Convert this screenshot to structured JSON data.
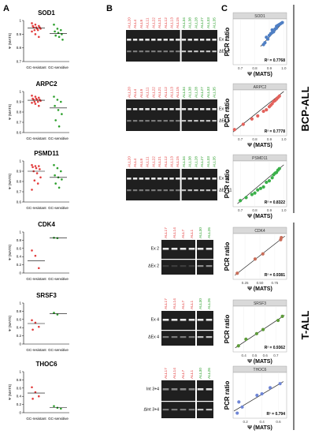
{
  "panels": {
    "a": "A",
    "b": "B",
    "c": "C"
  },
  "groups": {
    "bcp": "BCP-ALL",
    "tall": "T-ALL"
  },
  "colors": {
    "resistant": "#e23c3c",
    "sensitive": "#2ca02c",
    "sod1": "#4f7fc4",
    "arpc2": "#e3625c",
    "psmd11": "#3bb04a",
    "cdk4": "#c96e5a",
    "srsf3": "#5e9c3a",
    "thoc6": "#6f86d6"
  },
  "panel_a": {
    "ylabel": "Ψ (MATS)",
    "xlabels": [
      "GC-resistant",
      "GC-sensitive"
    ],
    "genes": [
      {
        "name": "SOD1",
        "yticks": [
          "0.7",
          "0.8",
          "0.9",
          "1"
        ],
        "yrange": [
          0.7,
          1.0
        ],
        "resistant": [
          0.98,
          0.97,
          0.96,
          0.96,
          0.95,
          0.95,
          0.95,
          0.94,
          0.94,
          0.93,
          0.93,
          0.92,
          0.9,
          0.88
        ],
        "sensitive": [
          0.97,
          0.94,
          0.93,
          0.92,
          0.91,
          0.9,
          0.89,
          0.88,
          0.86
        ],
        "res_mean": 0.945,
        "sens_mean": 0.905
      },
      {
        "name": "ARPC2",
        "yticks": [
          "0.6",
          "0.7",
          "0.8",
          "0.9",
          "1"
        ],
        "yrange": [
          0.6,
          1.0
        ],
        "resistant": [
          0.96,
          0.95,
          0.94,
          0.93,
          0.93,
          0.92,
          0.92,
          0.92,
          0.91,
          0.9,
          0.9,
          0.89,
          0.88,
          0.86
        ],
        "sensitive": [
          0.95,
          0.92,
          0.9,
          0.86,
          0.82,
          0.78,
          0.72,
          0.66
        ],
        "res_mean": 0.915,
        "sens_mean": 0.84
      },
      {
        "name": "PSMD11",
        "yticks": [
          "0.6",
          "0.7",
          "0.8",
          "0.9",
          "1"
        ],
        "yrange": [
          0.6,
          1.0
        ],
        "resistant": [
          0.96,
          0.95,
          0.95,
          0.94,
          0.93,
          0.92,
          0.9,
          0.88,
          0.84,
          0.81,
          0.78,
          0.72
        ],
        "sensitive": [
          0.96,
          0.93,
          0.9,
          0.86,
          0.84,
          0.82,
          0.78,
          0.74
        ],
        "res_mean": 0.9,
        "sens_mean": 0.84
      },
      {
        "name": "CDK4",
        "yticks": [
          "0",
          "0.2",
          "0.4",
          "0.6",
          "0.8",
          "1"
        ],
        "yrange": [
          0.0,
          1.0
        ],
        "resistant": [
          0.55,
          0.42,
          0.12
        ],
        "sensitive": [
          0.86,
          0.85
        ],
        "res_mean": 0.3,
        "sens_mean": 0.86
      },
      {
        "name": "SRSF3",
        "yticks": [
          "0",
          "0.2",
          "0.4",
          "0.6",
          "0.8",
          "1"
        ],
        "yrange": [
          0.0,
          1.0
        ],
        "resistant": [
          0.58,
          0.52,
          0.42,
          0.35
        ],
        "sensitive": [
          0.76,
          0.72
        ],
        "res_mean": 0.5,
        "sens_mean": 0.74
      },
      {
        "name": "THOC6",
        "yticks": [
          "0",
          "0.2",
          "0.4",
          "0.6",
          "0.8",
          "1"
        ],
        "yrange": [
          0.0,
          1.0
        ],
        "resistant": [
          0.62,
          0.5,
          0.4,
          0.34
        ],
        "sensitive": [
          0.16,
          0.12,
          0.1
        ],
        "res_mean": 0.48,
        "sens_mean": 0.12
      }
    ]
  },
  "panel_b": {
    "rows": [
      {
        "red": [
          "ALL20",
          "ALL4",
          "ALL9",
          "ALL11",
          "ALL22",
          "ALL21",
          "ALL12",
          "ALL13",
          "ALL15"
        ],
        "green": [
          "ALL34",
          "ALL38",
          "ALL28",
          "ALL27",
          "ALL33",
          "ALL35"
        ],
        "bands": [
          "Ex 2",
          "ΔEx 2"
        ]
      },
      {
        "red": [
          "ALL20",
          "ALL4",
          "ALL9",
          "ALL11",
          "ALL22",
          "ALL21",
          "ALL12",
          "ALL13",
          "ALL15"
        ],
        "green": [
          "ALL34",
          "ALL38",
          "ALL28",
          "ALL27",
          "ALL33",
          "ALL35"
        ],
        "bands": [
          "Ex 5",
          "ΔEx 5"
        ]
      },
      {
        "red": [
          "ALL20",
          "ALL4",
          "ALL9",
          "ALL11",
          "ALL22",
          "ALL21",
          "ALL12",
          "ALL13",
          "ALL15"
        ],
        "green": [
          "ALL34",
          "ALL38",
          "ALL28",
          "ALL27",
          "ALL33",
          "ALL35"
        ],
        "bands": [
          "Ex 11",
          "ΔEx 11"
        ]
      },
      {
        "red": [
          "ALL17",
          "ALL14",
          "ALL7",
          "ALL1"
        ],
        "green": [
          "ALL30",
          "ALL26"
        ],
        "bands": [
          "Ex 2",
          "ΔEx 2"
        ]
      },
      {
        "red": [
          "ALL17",
          "ALL14",
          "ALL7",
          "ALL1"
        ],
        "green": [
          "ALL30",
          "ALL26"
        ],
        "bands": [
          "Ex 4",
          "ΔEx 4"
        ]
      },
      {
        "red": [
          "ALL17",
          "ALL14",
          "ALL7",
          "ALL1"
        ],
        "green": [
          "ALL30",
          "ALL26"
        ],
        "bands": [
          "Int 3+4",
          "ΔInt 3+4"
        ]
      }
    ]
  },
  "panel_c": {
    "ylabel": "PCR ratio",
    "xlabel": "Ψ (MATS)",
    "plots": [
      {
        "name": "SOD1",
        "r2": "R² = 0.7768",
        "xticks": [
          "0.7",
          "0.8",
          "0.9",
          "1.0"
        ],
        "xrange": [
          0.65,
          1.02
        ],
        "yrange": [
          0.5,
          1.0
        ],
        "points": [
          [
            0.86,
            0.72
          ],
          [
            0.87,
            0.74
          ],
          [
            0.88,
            0.8
          ],
          [
            0.89,
            0.78
          ],
          [
            0.9,
            0.82
          ],
          [
            0.91,
            0.84
          ],
          [
            0.92,
            0.85
          ],
          [
            0.92,
            0.88
          ],
          [
            0.93,
            0.86
          ],
          [
            0.94,
            0.89
          ],
          [
            0.95,
            0.9
          ],
          [
            0.95,
            0.92
          ],
          [
            0.96,
            0.93
          ],
          [
            0.97,
            0.94
          ],
          [
            0.98,
            0.95
          ],
          [
            0.99,
            0.96
          ]
        ],
        "fit": [
          [
            0.84,
            0.7
          ],
          [
            1.0,
            0.97
          ]
        ]
      },
      {
        "name": "ARPC2",
        "r2": "R² = 0.7778",
        "xticks": [
          "0.7",
          "0.8",
          "0.9",
          "1.0"
        ],
        "xrange": [
          0.65,
          1.02
        ],
        "yrange": [
          0.4,
          1.0
        ],
        "points": [
          [
            0.66,
            0.48
          ],
          [
            0.72,
            0.55
          ],
          [
            0.78,
            0.62
          ],
          [
            0.82,
            0.66
          ],
          [
            0.86,
            0.72
          ],
          [
            0.88,
            0.74
          ],
          [
            0.9,
            0.78
          ],
          [
            0.91,
            0.8
          ],
          [
            0.92,
            0.82
          ],
          [
            0.93,
            0.85
          ],
          [
            0.94,
            0.86
          ],
          [
            0.95,
            0.88
          ],
          [
            0.96,
            0.9
          ],
          [
            0.97,
            0.92
          ]
        ],
        "fit": [
          [
            0.65,
            0.45
          ],
          [
            1.0,
            0.98
          ]
        ]
      },
      {
        "name": "PSMD11",
        "r2": "R² = 0.8322",
        "xticks": [
          "0.7",
          "0.8",
          "0.9",
          "1.0"
        ],
        "xrange": [
          0.65,
          1.02
        ],
        "yrange": [
          0.4,
          1.0
        ],
        "points": [
          [
            0.7,
            0.48
          ],
          [
            0.74,
            0.52
          ],
          [
            0.78,
            0.56
          ],
          [
            0.8,
            0.58
          ],
          [
            0.82,
            0.62
          ],
          [
            0.84,
            0.64
          ],
          [
            0.86,
            0.66
          ],
          [
            0.88,
            0.72
          ],
          [
            0.9,
            0.74
          ],
          [
            0.92,
            0.78
          ],
          [
            0.93,
            0.82
          ],
          [
            0.94,
            0.84
          ],
          [
            0.95,
            0.85
          ],
          [
            0.96,
            0.88
          ],
          [
            0.97,
            0.9
          ]
        ],
        "fit": [
          [
            0.68,
            0.44
          ],
          [
            1.0,
            0.95
          ]
        ]
      },
      {
        "name": "CDK4",
        "r2": "R² = 0.9381",
        "xticks": [
          "0.25",
          "0.50",
          "0.75"
        ],
        "xrange": [
          0.05,
          0.95
        ],
        "yrange": [
          0.1,
          1.0
        ],
        "points": [
          [
            0.12,
            0.22
          ],
          [
            0.42,
            0.5
          ],
          [
            0.55,
            0.6
          ],
          [
            0.85,
            0.88
          ],
          [
            0.86,
            0.92
          ]
        ],
        "fit": [
          [
            0.08,
            0.18
          ],
          [
            0.92,
            0.95
          ]
        ]
      },
      {
        "name": "SRSF3",
        "r2": "R² = 0.9362",
        "xticks": [
          "0.4",
          "0.5",
          "0.6",
          "0.7"
        ],
        "xrange": [
          0.3,
          0.8
        ],
        "yrange": [
          0.1,
          1.0
        ],
        "points": [
          [
            0.35,
            0.22
          ],
          [
            0.42,
            0.35
          ],
          [
            0.52,
            0.46
          ],
          [
            0.58,
            0.54
          ],
          [
            0.72,
            0.72
          ],
          [
            0.76,
            0.8
          ]
        ],
        "fit": [
          [
            0.32,
            0.18
          ],
          [
            0.78,
            0.82
          ]
        ]
      },
      {
        "name": "THOC6",
        "r2": "R² = 0.794",
        "xticks": [
          "0.2",
          "0.4",
          "0.6"
        ],
        "xrange": [
          0.05,
          0.7
        ],
        "yrange": [
          0.1,
          1.0
        ],
        "points": [
          [
            0.1,
            0.2
          ],
          [
            0.12,
            0.42
          ],
          [
            0.16,
            0.32
          ],
          [
            0.34,
            0.55
          ],
          [
            0.4,
            0.58
          ],
          [
            0.5,
            0.7
          ],
          [
            0.62,
            0.78
          ]
        ],
        "fit": [
          [
            0.06,
            0.24
          ],
          [
            0.66,
            0.82
          ]
        ]
      }
    ]
  }
}
